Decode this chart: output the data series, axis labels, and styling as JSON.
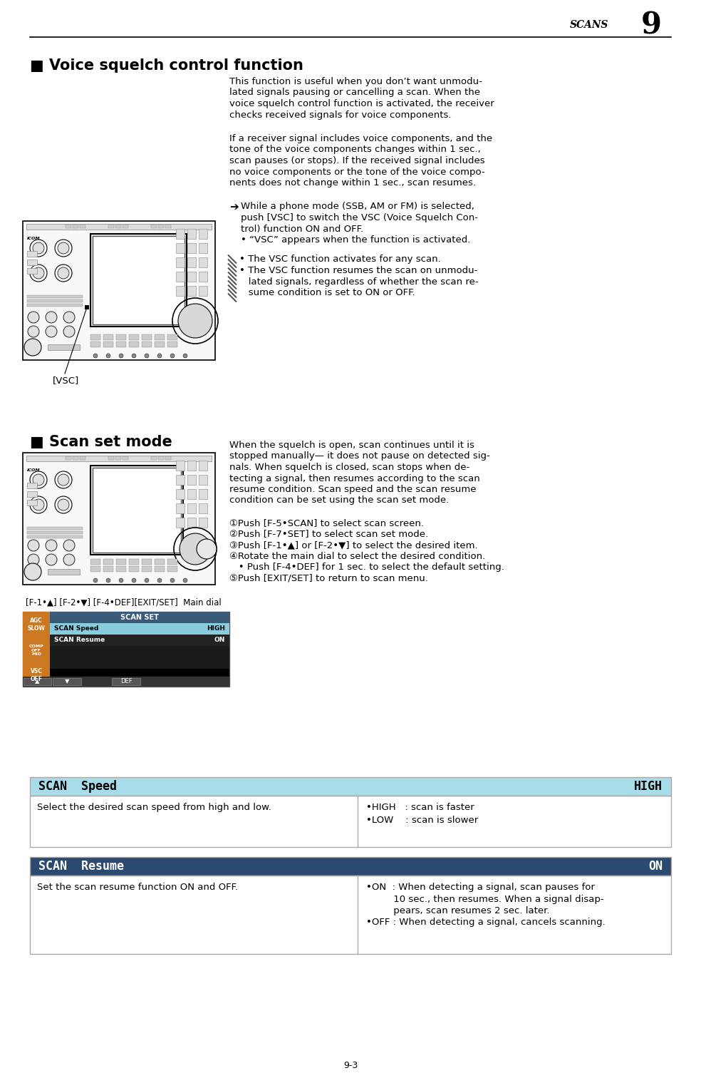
{
  "page_header_text": "SCANS",
  "page_header_num": "9",
  "page_footer": "9-3",
  "section1_title": "■ Voice squelch control function",
  "section1_para1": "This function is useful when you don’t want unmodu-\nlated signals pausing or cancelling a scan. When the\nvoice squelch control function is activated, the receiver\nchecks received signals for voice components.",
  "section1_para2": "If a receiver signal includes voice components, and the\ntone of the voice components changes within 1 sec.,\nscan pauses (or stops). If the received signal includes\nno voice components or the tone of the voice compo-\nnents does not change within 1 sec., scan resumes.",
  "section1_arrow_text1": "➔ While a phone mode (SSB, AM or FM) is selected,",
  "section1_arrow_text2": "    push [VSC] to switch the VSC (Voice Squelch Con-",
  "section1_arrow_text3": "    trol) function ON and OFF.",
  "section1_arrow_text4": "    • “VSC” appears when the function is activated.",
  "section1_note1": "• The VSC function activates for any scan.",
  "section1_note2": "• The VSC function resumes the scan on unmodu-",
  "section1_note3": "   lated signals, regardless of whether the scan re-",
  "section1_note4": "   sume condition is set to ON or OFF.",
  "vsc_label": "[VSC]",
  "section2_title": "■ Scan set mode",
  "section2_para1": "When the squelch is open, scan continues until it is",
  "section2_para2": "stopped manually— it does not pause on detected sig-",
  "section2_para3": "nals. When squelch is closed, scan stops when de-",
  "section2_para4": "tecting a signal, then resumes according to the scan",
  "section2_para5": "resume condition. Scan speed and the scan resume",
  "section2_para6": "condition can be set using the scan set mode.",
  "step1": "①Push [F-5•SCAN] to select scan screen.",
  "step2": "②Push [F-7•SET] to select scan set mode.",
  "step3": "③Push [F-1•▲] or [F-2•▼] to select the desired item.",
  "step4": "④Rotate the main dial to select the desired condition.",
  "step4b": "   • Push [F-4•DEF] for 1 sec. to select the default setting.",
  "step5": "⑤Push [EXIT/SET] to return to scan menu.",
  "fig2_label": "[F-1•▲] [F-2•▼] [F-4•DEF][EXIT/SET]  Main dial",
  "table1_header_left": "SCAN  Speed",
  "table1_header_right": "HIGH",
  "table1_desc": "Select the desired scan speed from high and low.",
  "table1_b1": "•HIGH   : scan is faster",
  "table1_b2": "•LOW    : scan is slower",
  "table2_header_left": "SCAN  Resume",
  "table2_header_right": "ON",
  "table2_desc": "Set the scan resume function ON and OFF.",
  "table2_b1": "•ON  : When detecting a signal, scan pauses for",
  "table2_b2": "         10 sec., then resumes. When a signal disap-",
  "table2_b3": "         pears, scan resumes 2 sec. later.",
  "table2_b4": "•OFF : When detecting a signal, cancels scanning.",
  "bg_color": "#ffffff",
  "text_color": "#000000",
  "table_header_bg": "#2c4a70",
  "table1_header_bg": "#a8dce8",
  "table_border": "#aaaaaa",
  "note_stripe_color": "#888888",
  "scan_screen_bg": "#111111",
  "scan_sidebar_bg": "#222222",
  "scan_row1_bg": "#88ccdd",
  "scan_header_bg": "#334455",
  "scan_orange": "#cc7722"
}
